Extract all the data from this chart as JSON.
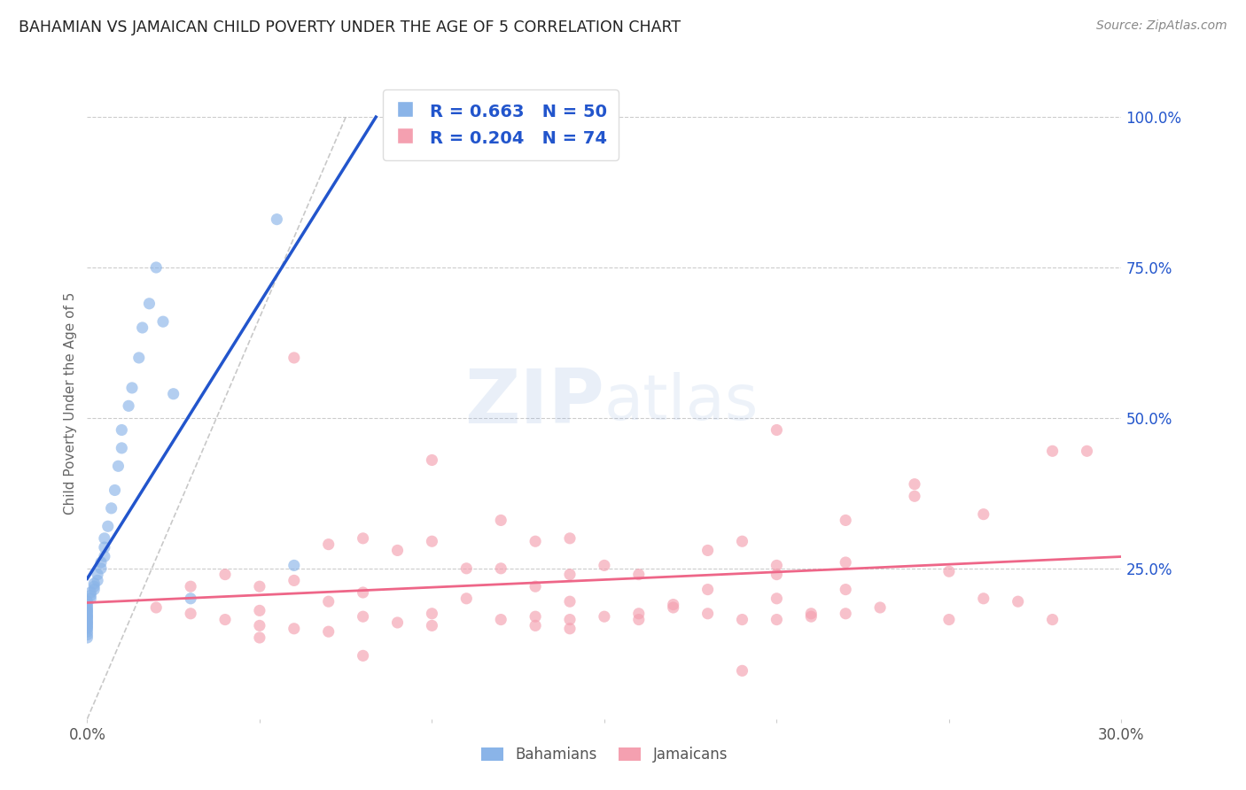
{
  "title": "BAHAMIAN VS JAMAICAN CHILD POVERTY UNDER THE AGE OF 5 CORRELATION CHART",
  "source": "Source: ZipAtlas.com",
  "ylabel": "Child Poverty Under the Age of 5",
  "right_yticks": [
    "100.0%",
    "75.0%",
    "50.0%",
    "25.0%"
  ],
  "right_ytick_vals": [
    1.0,
    0.75,
    0.5,
    0.25
  ],
  "legend_blue_R": "R = 0.663",
  "legend_blue_N": "N = 50",
  "legend_pink_R": "R = 0.204",
  "legend_pink_N": "N = 74",
  "blue_color": "#8AB4E8",
  "pink_color": "#F4A0B0",
  "blue_line_color": "#2255CC",
  "pink_line_color": "#EE6688",
  "legend_text_color": "#2255CC",
  "title_color": "#222222",
  "source_color": "#888888",
  "grid_color": "#CCCCCC",
  "xmin": 0.0,
  "xmax": 0.3,
  "ymin": 0.0,
  "ymax": 1.05,
  "blue_scatter_x": [
    0.0,
    0.0,
    0.0,
    0.0,
    0.0,
    0.0,
    0.0,
    0.0,
    0.0,
    0.0,
    0.0,
    0.0,
    0.0,
    0.0,
    0.0,
    0.0,
    0.0,
    0.0,
    0.0,
    0.0,
    0.001,
    0.001,
    0.001,
    0.002,
    0.002,
    0.002,
    0.003,
    0.003,
    0.004,
    0.004,
    0.005,
    0.005,
    0.005,
    0.006,
    0.007,
    0.008,
    0.009,
    0.01,
    0.01,
    0.012,
    0.013,
    0.015,
    0.016,
    0.018,
    0.02,
    0.022,
    0.025,
    0.03,
    0.055,
    0.06
  ],
  "blue_scatter_y": [
    0.135,
    0.14,
    0.145,
    0.15,
    0.152,
    0.155,
    0.158,
    0.16,
    0.162,
    0.165,
    0.168,
    0.17,
    0.172,
    0.175,
    0.178,
    0.18,
    0.183,
    0.186,
    0.19,
    0.195,
    0.2,
    0.205,
    0.21,
    0.215,
    0.22,
    0.225,
    0.23,
    0.24,
    0.25,
    0.26,
    0.27,
    0.285,
    0.3,
    0.32,
    0.35,
    0.38,
    0.42,
    0.45,
    0.48,
    0.52,
    0.55,
    0.6,
    0.65,
    0.69,
    0.75,
    0.66,
    0.54,
    0.2,
    0.83,
    0.255
  ],
  "pink_scatter_x": [
    0.02,
    0.03,
    0.03,
    0.04,
    0.04,
    0.05,
    0.05,
    0.05,
    0.06,
    0.06,
    0.07,
    0.07,
    0.07,
    0.08,
    0.08,
    0.08,
    0.09,
    0.09,
    0.1,
    0.1,
    0.1,
    0.11,
    0.11,
    0.12,
    0.12,
    0.12,
    0.13,
    0.13,
    0.13,
    0.14,
    0.14,
    0.14,
    0.14,
    0.15,
    0.15,
    0.16,
    0.16,
    0.17,
    0.17,
    0.18,
    0.18,
    0.18,
    0.19,
    0.19,
    0.2,
    0.2,
    0.2,
    0.2,
    0.21,
    0.22,
    0.22,
    0.22,
    0.23,
    0.24,
    0.24,
    0.25,
    0.25,
    0.26,
    0.26,
    0.27,
    0.28,
    0.28,
    0.2,
    0.14,
    0.06,
    0.1,
    0.13,
    0.16,
    0.22,
    0.19,
    0.08,
    0.05,
    0.29,
    0.21
  ],
  "pink_scatter_y": [
    0.185,
    0.175,
    0.22,
    0.165,
    0.24,
    0.155,
    0.18,
    0.22,
    0.15,
    0.23,
    0.145,
    0.195,
    0.29,
    0.17,
    0.21,
    0.3,
    0.16,
    0.28,
    0.155,
    0.175,
    0.295,
    0.2,
    0.25,
    0.165,
    0.25,
    0.33,
    0.17,
    0.22,
    0.295,
    0.165,
    0.195,
    0.24,
    0.3,
    0.17,
    0.255,
    0.165,
    0.24,
    0.185,
    0.19,
    0.175,
    0.215,
    0.28,
    0.165,
    0.295,
    0.165,
    0.2,
    0.24,
    0.255,
    0.175,
    0.175,
    0.26,
    0.33,
    0.185,
    0.39,
    0.37,
    0.165,
    0.245,
    0.2,
    0.34,
    0.195,
    0.165,
    0.445,
    0.48,
    0.15,
    0.6,
    0.43,
    0.155,
    0.175,
    0.215,
    0.08,
    0.105,
    0.135,
    0.445,
    0.17
  ]
}
